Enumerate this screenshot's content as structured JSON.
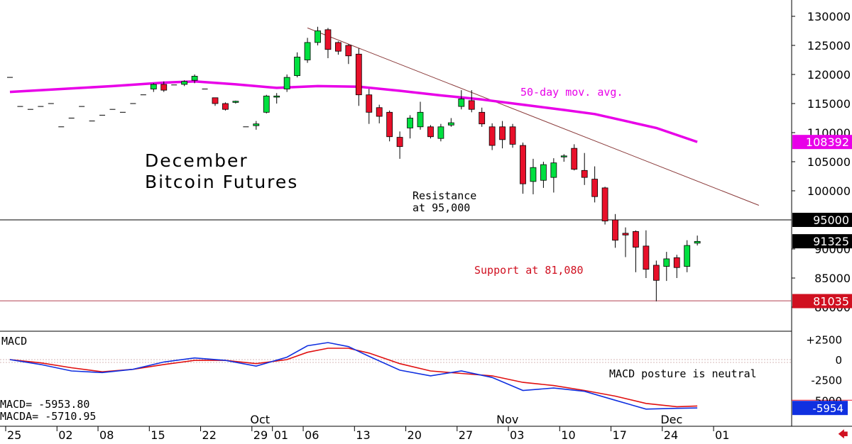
{
  "chart_title": [
    "December",
    "Bitcoin Futures"
  ],
  "annotations": {
    "moving_average": "50-day mov. avg.",
    "resistance": [
      "Resistance",
      "at 95,000"
    ],
    "support": "Support at 81,080",
    "macd_posture": "MACD posture is neutral"
  },
  "macd_panel": {
    "title": "MACD",
    "macd_label": "MACD=  -5953.80",
    "macda_label": "MACDA= -5710.95",
    "y_ticks": [
      "+2500",
      "0",
      "-2500",
      "-5000"
    ],
    "y_values": [
      2500,
      0,
      -2500,
      -5000
    ],
    "current_tag": "-5954",
    "current_value": -5954
  },
  "x_axis": {
    "months": [
      {
        "label": "Oct",
        "slot": 23
      },
      {
        "label": "Nov",
        "slot": 47
      },
      {
        "label": "Dec",
        "slot": 63
      }
    ],
    "days": [
      {
        "label": "25",
        "slot": 0
      },
      {
        "label": "02",
        "slot": 5
      },
      {
        "label": "08",
        "slot": 9
      },
      {
        "label": "15",
        "slot": 14
      },
      {
        "label": "22",
        "slot": 19
      },
      {
        "label": "29",
        "slot": 24
      },
      {
        "label": "01",
        "slot": 26
      },
      {
        "label": "06",
        "slot": 29
      },
      {
        "label": "13",
        "slot": 34
      },
      {
        "label": "20",
        "slot": 39
      },
      {
        "label": "27",
        "slot": 44
      },
      {
        "label": "03",
        "slot": 49
      },
      {
        "label": "10",
        "slot": 54
      },
      {
        "label": "17",
        "slot": 59
      },
      {
        "label": "24",
        "slot": 64
      },
      {
        "label": "01",
        "slot": 69
      }
    ]
  },
  "price_axis": {
    "ticks": [
      "130000",
      "125000",
      "120000",
      "115000",
      "110000",
      "105000",
      "100000",
      "90000",
      "85000",
      "80000"
    ],
    "tick_values": [
      130000,
      125000,
      120000,
      115000,
      110000,
      105000,
      100000,
      90000,
      85000,
      80000
    ],
    "tags": [
      {
        "label": "108392",
        "value": 108392,
        "color": "#e800e8",
        "text_color": "#ffffff"
      },
      {
        "label": "95000",
        "value": 95000,
        "color": "#000000",
        "text_color": "#ffffff"
      },
      {
        "label": "91325",
        "value": 91325,
        "color": "#000000",
        "text_color": "#ffffff"
      },
      {
        "label": "81035",
        "value": 81035,
        "color": "#d01020",
        "text_color": "#ffffff"
      }
    ]
  },
  "colors": {
    "up": "#00e040",
    "down": "#e8102a",
    "ma": "#e800e8",
    "trendline": "#8a3a3a",
    "support": "#b04050",
    "macd": "#1030e0",
    "macda": "#e01010"
  },
  "chart_data": {
    "type": "candlestick",
    "x_unit": "trading-day slot",
    "resistance_level": 95000,
    "support_level": 81080,
    "trendline": [
      {
        "slot": 29,
        "price": 128000
      },
      {
        "slot": 73,
        "price": 97500
      }
    ],
    "candles": [
      {
        "slot": 0,
        "o": 119500,
        "h": 119500,
        "l": 119500,
        "c": 119500
      },
      {
        "slot": 1,
        "o": 114500,
        "h": 114500,
        "l": 114500,
        "c": 114500
      },
      {
        "slot": 2,
        "o": 114000,
        "h": 114000,
        "l": 114000,
        "c": 114000
      },
      {
        "slot": 3,
        "o": 114500,
        "h": 114500,
        "l": 114500,
        "c": 114500
      },
      {
        "slot": 4,
        "o": 115000,
        "h": 115000,
        "l": 115000,
        "c": 115000
      },
      {
        "slot": 5,
        "o": 111000,
        "h": 111000,
        "l": 111000,
        "c": 111000
      },
      {
        "slot": 6,
        "o": 112500,
        "h": 112500,
        "l": 112500,
        "c": 112500
      },
      {
        "slot": 7,
        "o": 114500,
        "h": 114500,
        "l": 114500,
        "c": 114500
      },
      {
        "slot": 8,
        "o": 112000,
        "h": 112000,
        "l": 112000,
        "c": 112000
      },
      {
        "slot": 9,
        "o": 113000,
        "h": 113000,
        "l": 113000,
        "c": 113000
      },
      {
        "slot": 10,
        "o": 114000,
        "h": 114000,
        "l": 114000,
        "c": 114000
      },
      {
        "slot": 11,
        "o": 113500,
        "h": 113500,
        "l": 113500,
        "c": 113500
      },
      {
        "slot": 12,
        "o": 115000,
        "h": 115000,
        "l": 115000,
        "c": 115000
      },
      {
        "slot": 13,
        "o": 116500,
        "h": 116500,
        "l": 116500,
        "c": 116500
      },
      {
        "slot": 14,
        "o": 117500,
        "h": 118500,
        "l": 117000,
        "c": 118300
      },
      {
        "slot": 15,
        "o": 118300,
        "h": 118800,
        "l": 117000,
        "c": 117300
      },
      {
        "slot": 16,
        "o": 118200,
        "h": 118200,
        "l": 118200,
        "c": 118200
      },
      {
        "slot": 17,
        "o": 118300,
        "h": 119000,
        "l": 118000,
        "c": 118800
      },
      {
        "slot": 18,
        "o": 119000,
        "h": 120000,
        "l": 118500,
        "c": 119700
      },
      {
        "slot": 19,
        "o": 117500,
        "h": 117500,
        "l": 117500,
        "c": 117500
      },
      {
        "slot": 20,
        "o": 116000,
        "h": 116000,
        "l": 114600,
        "c": 115000
      },
      {
        "slot": 21,
        "o": 115000,
        "h": 115200,
        "l": 113800,
        "c": 114000
      },
      {
        "slot": 22,
        "o": 115200,
        "h": 115500,
        "l": 115000,
        "c": 115400
      },
      {
        "slot": 23,
        "o": 111000,
        "h": 111000,
        "l": 111000,
        "c": 111000
      },
      {
        "slot": 24,
        "o": 111200,
        "h": 112000,
        "l": 110500,
        "c": 111500
      },
      {
        "slot": 25,
        "o": 113500,
        "h": 116500,
        "l": 113300,
        "c": 116300
      },
      {
        "slot": 26,
        "o": 116100,
        "h": 116800,
        "l": 115000,
        "c": 116300
      },
      {
        "slot": 27,
        "o": 117500,
        "h": 120000,
        "l": 117000,
        "c": 119500
      },
      {
        "slot": 28,
        "o": 119800,
        "h": 123800,
        "l": 119500,
        "c": 123000
      },
      {
        "slot": 29,
        "o": 122500,
        "h": 126300,
        "l": 122000,
        "c": 125500
      },
      {
        "slot": 30,
        "o": 125500,
        "h": 128200,
        "l": 125000,
        "c": 127500
      },
      {
        "slot": 31,
        "o": 127700,
        "h": 128000,
        "l": 122800,
        "c": 124300
      },
      {
        "slot": 32,
        "o": 125500,
        "h": 125700,
        "l": 123400,
        "c": 124000
      },
      {
        "slot": 33,
        "o": 125000,
        "h": 125200,
        "l": 121800,
        "c": 123200
      },
      {
        "slot": 34,
        "o": 123500,
        "h": 124500,
        "l": 114600,
        "c": 116500
      },
      {
        "slot": 35,
        "o": 116500,
        "h": 117500,
        "l": 111500,
        "c": 113500
      },
      {
        "slot": 36,
        "o": 114300,
        "h": 114800,
        "l": 111600,
        "c": 112800
      },
      {
        "slot": 37,
        "o": 113500,
        "h": 113800,
        "l": 108500,
        "c": 109300
      },
      {
        "slot": 38,
        "o": 109200,
        "h": 110200,
        "l": 105500,
        "c": 107600
      },
      {
        "slot": 39,
        "o": 110800,
        "h": 113000,
        "l": 109000,
        "c": 112500
      },
      {
        "slot": 40,
        "o": 111000,
        "h": 115300,
        "l": 110500,
        "c": 113500
      },
      {
        "slot": 41,
        "o": 111000,
        "h": 111300,
        "l": 109000,
        "c": 109300
      },
      {
        "slot": 42,
        "o": 109000,
        "h": 111500,
        "l": 108500,
        "c": 111000
      },
      {
        "slot": 43,
        "o": 111300,
        "h": 112500,
        "l": 111000,
        "c": 111700
      },
      {
        "slot": 44,
        "o": 114500,
        "h": 117300,
        "l": 114000,
        "c": 115800
      },
      {
        "slot": 45,
        "o": 115500,
        "h": 117300,
        "l": 113500,
        "c": 114000
      },
      {
        "slot": 46,
        "o": 113500,
        "h": 114300,
        "l": 111000,
        "c": 111500
      },
      {
        "slot": 47,
        "o": 111000,
        "h": 111600,
        "l": 107000,
        "c": 107800
      },
      {
        "slot": 48,
        "o": 111000,
        "h": 112000,
        "l": 107300,
        "c": 108800
      },
      {
        "slot": 49,
        "o": 111000,
        "h": 111500,
        "l": 107400,
        "c": 108000
      },
      {
        "slot": 50,
        "o": 107800,
        "h": 108300,
        "l": 99500,
        "c": 101200
      },
      {
        "slot": 51,
        "o": 101600,
        "h": 105500,
        "l": 99400,
        "c": 104000
      },
      {
        "slot": 52,
        "o": 101800,
        "h": 105000,
        "l": 100500,
        "c": 104500
      },
      {
        "slot": 53,
        "o": 102300,
        "h": 105600,
        "l": 99700,
        "c": 104800
      },
      {
        "slot": 54,
        "o": 106000,
        "h": 106300,
        "l": 105000,
        "c": 106000
      },
      {
        "slot": 55,
        "o": 107300,
        "h": 108000,
        "l": 103500,
        "c": 103700
      },
      {
        "slot": 56,
        "o": 103500,
        "h": 106500,
        "l": 101000,
        "c": 102300
      },
      {
        "slot": 57,
        "o": 102000,
        "h": 104200,
        "l": 98000,
        "c": 99000
      },
      {
        "slot": 58,
        "o": 100500,
        "h": 100700,
        "l": 94200,
        "c": 94800
      },
      {
        "slot": 59,
        "o": 95000,
        "h": 96000,
        "l": 90200,
        "c": 91500
      },
      {
        "slot": 60,
        "o": 92700,
        "h": 93700,
        "l": 88600,
        "c": 92400
      },
      {
        "slot": 61,
        "o": 93000,
        "h": 93200,
        "l": 86000,
        "c": 90300
      },
      {
        "slot": 62,
        "o": 90500,
        "h": 93200,
        "l": 85000,
        "c": 86500
      },
      {
        "slot": 63,
        "o": 87200,
        "h": 88000,
        "l": 81000,
        "c": 84600
      },
      {
        "slot": 64,
        "o": 87000,
        "h": 89500,
        "l": 84500,
        "c": 88300
      },
      {
        "slot": 65,
        "o": 88500,
        "h": 89000,
        "l": 85000,
        "c": 86800
      },
      {
        "slot": 66,
        "o": 87000,
        "h": 91500,
        "l": 86000,
        "c": 90600
      },
      {
        "slot": 67,
        "o": 91000,
        "h": 92300,
        "l": 90600,
        "c": 91300
      }
    ],
    "moving_average_50": [
      {
        "slot": 0,
        "v": 117000
      },
      {
        "slot": 5,
        "v": 117500
      },
      {
        "slot": 10,
        "v": 118000
      },
      {
        "slot": 15,
        "v": 118600
      },
      {
        "slot": 18,
        "v": 118800
      },
      {
        "slot": 22,
        "v": 118300
      },
      {
        "slot": 26,
        "v": 117700
      },
      {
        "slot": 30,
        "v": 118000
      },
      {
        "slot": 34,
        "v": 117900
      },
      {
        "slot": 38,
        "v": 117200
      },
      {
        "slot": 42,
        "v": 116400
      },
      {
        "slot": 46,
        "v": 115700
      },
      {
        "slot": 50,
        "v": 114800
      },
      {
        "slot": 54,
        "v": 113900
      },
      {
        "slot": 57,
        "v": 113200
      },
      {
        "slot": 60,
        "v": 112000
      },
      {
        "slot": 63,
        "v": 110800
      },
      {
        "slot": 67,
        "v": 108400
      }
    ],
    "macd": [
      {
        "slot": 0,
        "v": 0
      },
      {
        "slot": 3,
        "v": -600
      },
      {
        "slot": 6,
        "v": -1400
      },
      {
        "slot": 9,
        "v": -1600
      },
      {
        "slot": 12,
        "v": -1200
      },
      {
        "slot": 15,
        "v": -300
      },
      {
        "slot": 18,
        "v": 200
      },
      {
        "slot": 21,
        "v": -100
      },
      {
        "slot": 24,
        "v": -800
      },
      {
        "slot": 27,
        "v": 300
      },
      {
        "slot": 29,
        "v": 1700
      },
      {
        "slot": 31,
        "v": 2100
      },
      {
        "slot": 33,
        "v": 1600
      },
      {
        "slot": 35,
        "v": 400
      },
      {
        "slot": 38,
        "v": -1300
      },
      {
        "slot": 41,
        "v": -2000
      },
      {
        "slot": 44,
        "v": -1400
      },
      {
        "slot": 47,
        "v": -2200
      },
      {
        "slot": 50,
        "v": -3800
      },
      {
        "slot": 53,
        "v": -3500
      },
      {
        "slot": 56,
        "v": -3900
      },
      {
        "slot": 59,
        "v": -5000
      },
      {
        "slot": 62,
        "v": -6100
      },
      {
        "slot": 65,
        "v": -6000
      },
      {
        "slot": 67,
        "v": -5954
      }
    ],
    "macda": [
      {
        "slot": 0,
        "v": 0
      },
      {
        "slot": 3,
        "v": -400
      },
      {
        "slot": 6,
        "v": -1000
      },
      {
        "slot": 9,
        "v": -1500
      },
      {
        "slot": 12,
        "v": -1200
      },
      {
        "slot": 15,
        "v": -600
      },
      {
        "slot": 18,
        "v": -100
      },
      {
        "slot": 21,
        "v": -100
      },
      {
        "slot": 24,
        "v": -500
      },
      {
        "slot": 27,
        "v": 0
      },
      {
        "slot": 29,
        "v": 900
      },
      {
        "slot": 31,
        "v": 1400
      },
      {
        "slot": 33,
        "v": 1400
      },
      {
        "slot": 35,
        "v": 800
      },
      {
        "slot": 38,
        "v": -500
      },
      {
        "slot": 41,
        "v": -1400
      },
      {
        "slot": 44,
        "v": -1700
      },
      {
        "slot": 47,
        "v": -2000
      },
      {
        "slot": 50,
        "v": -2800
      },
      {
        "slot": 53,
        "v": -3200
      },
      {
        "slot": 56,
        "v": -3800
      },
      {
        "slot": 59,
        "v": -4500
      },
      {
        "slot": 62,
        "v": -5400
      },
      {
        "slot": 65,
        "v": -5800
      },
      {
        "slot": 67,
        "v": -5711
      }
    ]
  }
}
